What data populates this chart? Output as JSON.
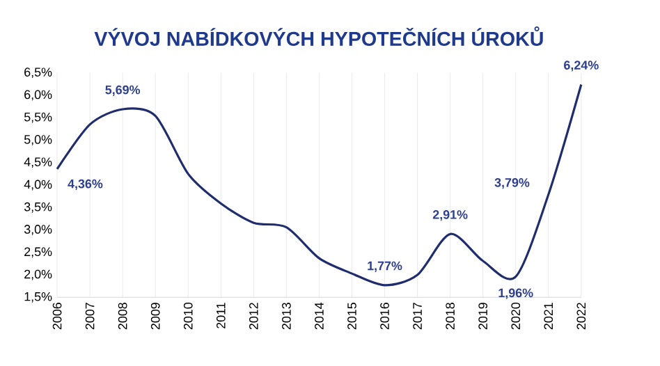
{
  "chart_data": {
    "type": "line",
    "title": "VÝVOJ NABÍDKOVÝCH HYPOTEČNÍCH ÚROKŮ",
    "x": [
      2006,
      2007,
      2008,
      2009,
      2010,
      2011,
      2012,
      2013,
      2014,
      2015,
      2016,
      2017,
      2018,
      2019,
      2020,
      2021,
      2022
    ],
    "series": [
      {
        "color": "#1f2d6e",
        "values": [
          4.36,
          5.35,
          5.69,
          5.54,
          4.25,
          3.59,
          3.16,
          3.06,
          2.37,
          2.03,
          1.77,
          2.0,
          2.91,
          2.31,
          1.96,
          3.79,
          6.24
        ],
        "value_labels": [
          "4,36%",
          null,
          "5,69%",
          null,
          null,
          null,
          null,
          null,
          null,
          null,
          "1,77%",
          null,
          "2,91%",
          null,
          "1,96%",
          "3,79%",
          "6,24%"
        ]
      }
    ],
    "xlim": [
      2006,
      2022
    ],
    "xticks": [
      2006,
      2007,
      2008,
      2009,
      2010,
      2011,
      2012,
      2013,
      2014,
      2015,
      2016,
      2017,
      2018,
      2019,
      2020,
      2021,
      2022
    ],
    "ylim": [
      1.5,
      6.5
    ],
    "yticks": [
      {
        "value": 1.5,
        "label": "1,5%"
      },
      {
        "value": 2.0,
        "label": "2,0%"
      },
      {
        "value": 2.5,
        "label": "2,5%"
      },
      {
        "value": 3.0,
        "label": "3,0%"
      },
      {
        "value": 3.5,
        "label": "3,5%"
      },
      {
        "value": 4.0,
        "label": "4,0%"
      },
      {
        "value": 4.5,
        "label": "4,5%"
      },
      {
        "value": 5.0,
        "label": "5,0%"
      },
      {
        "value": 5.5,
        "label": "5,5%"
      },
      {
        "value": 6.0,
        "label": "6,0%"
      },
      {
        "value": 6.5,
        "label": "6,5%"
      }
    ],
    "grid": "x",
    "marker": "none",
    "line_style": "solid"
  }
}
